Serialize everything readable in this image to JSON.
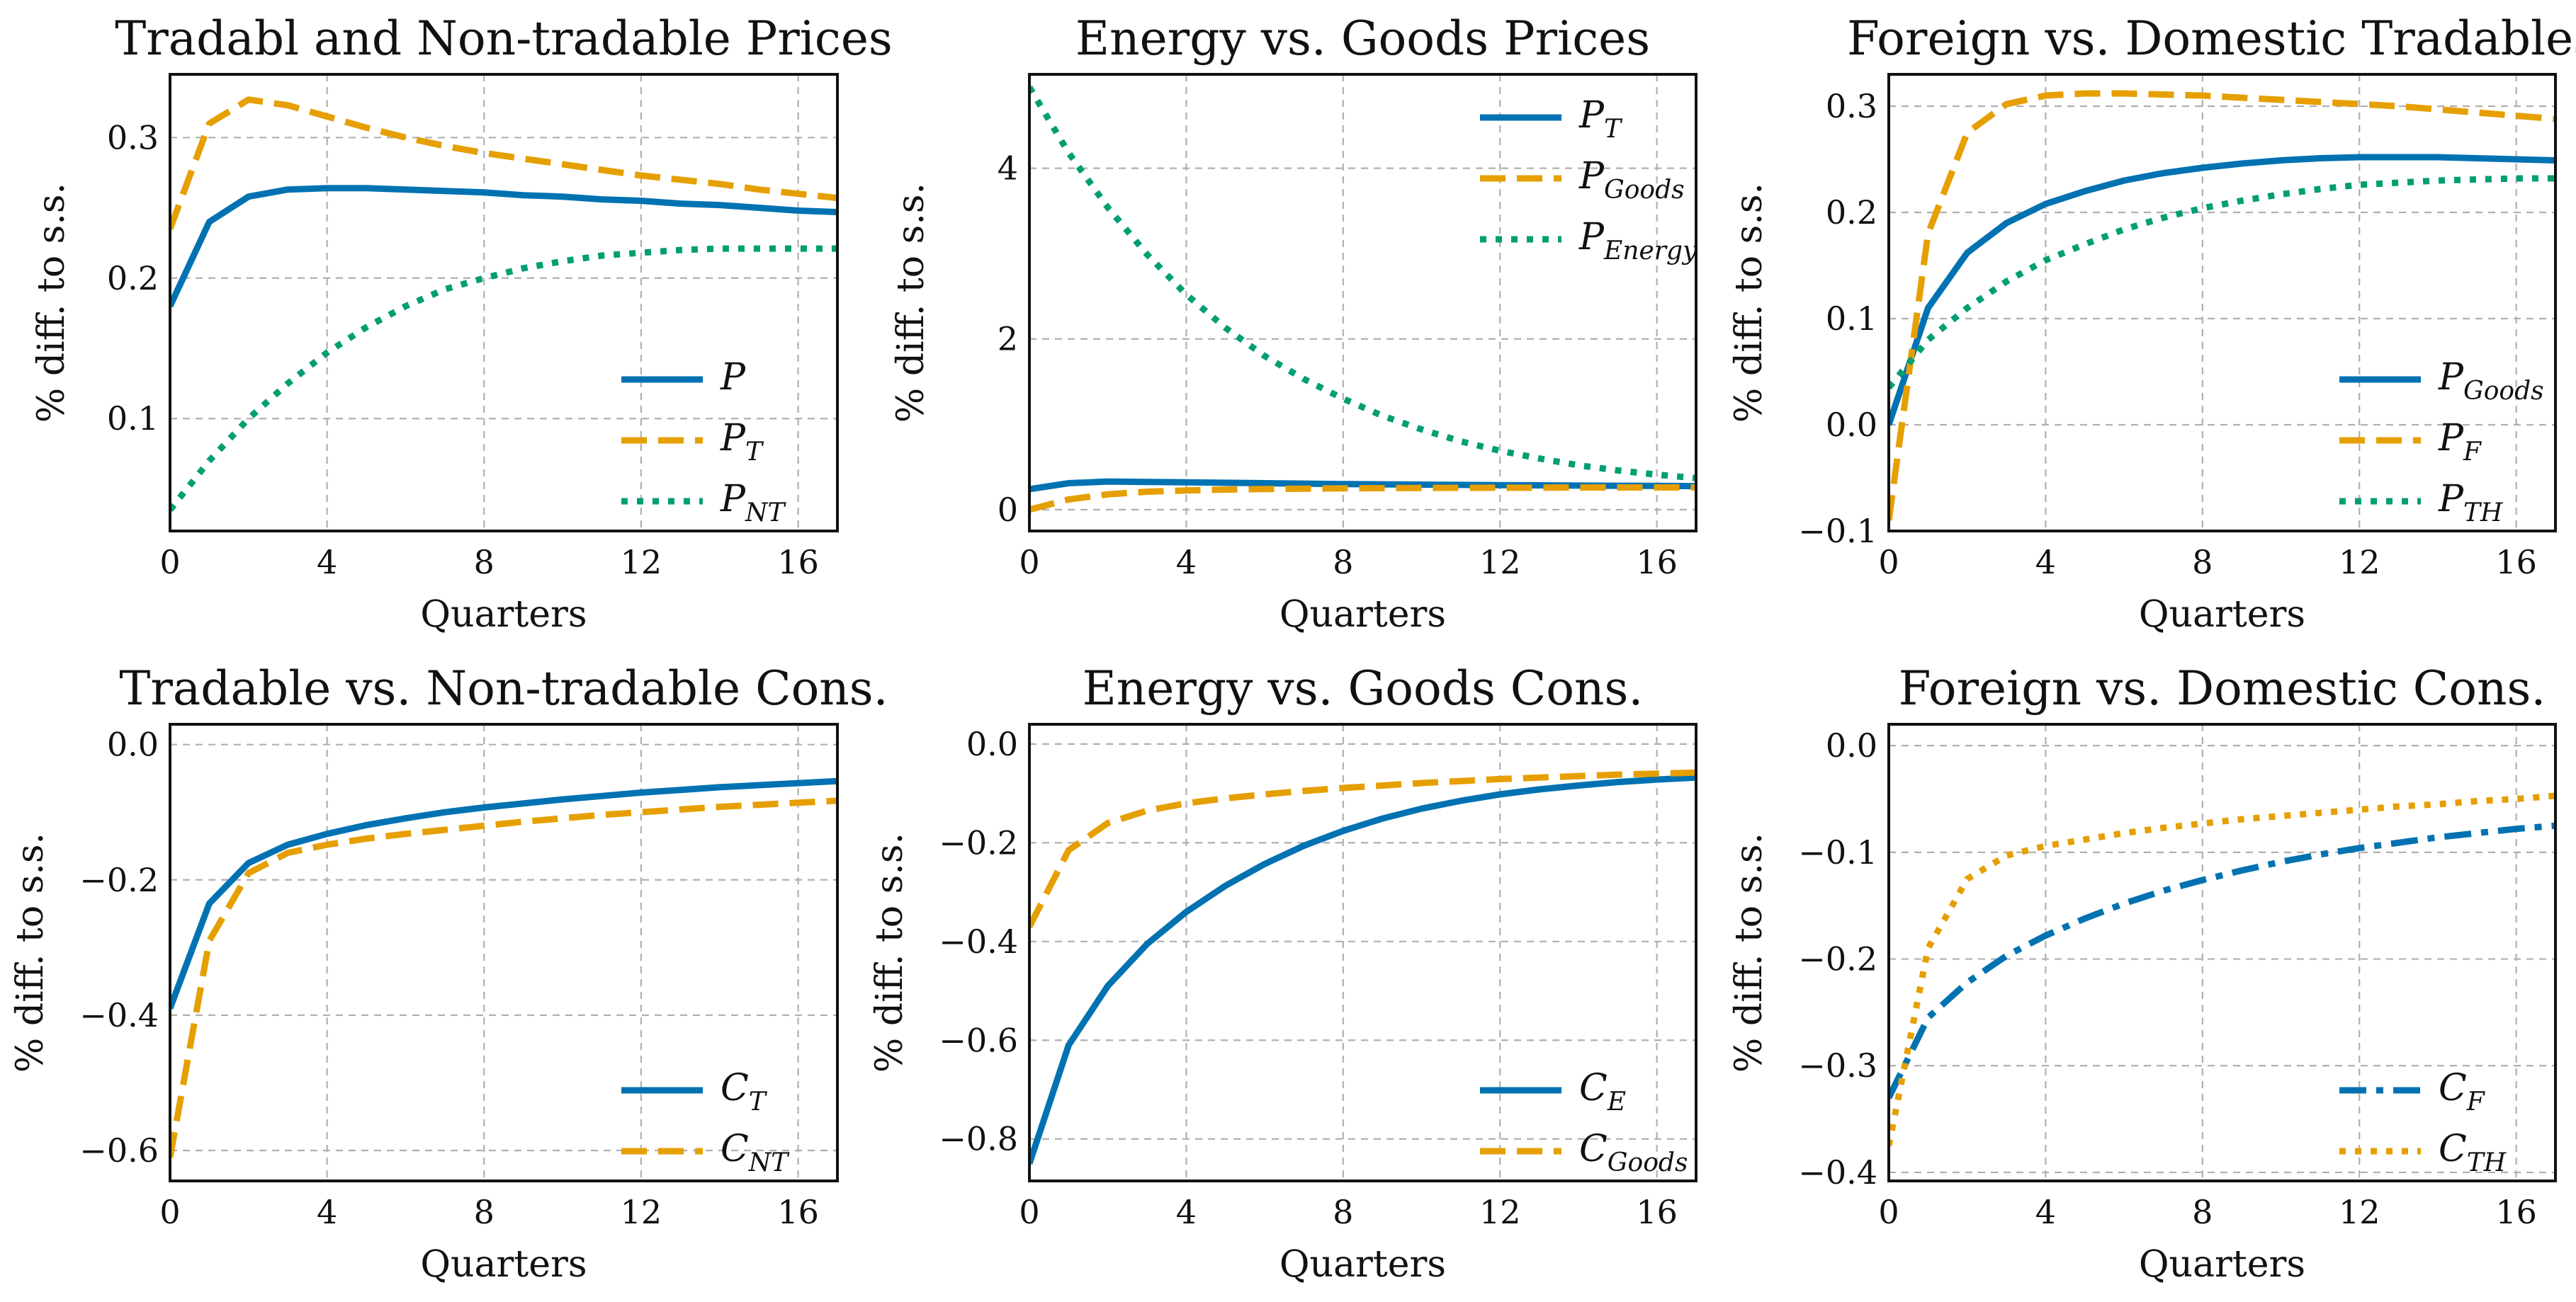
{
  "colors": {
    "blue": "#0072B2",
    "orange": "#E69F00",
    "green": "#009E73",
    "grid": "#b0b0b0",
    "frame": "#111111"
  },
  "chart_data": [
    {
      "type": "line",
      "title": "Tradabl and Non-tradable Prices",
      "xlabel": "Quarters",
      "ylabel": "% diff. to s.s.",
      "xlim": [
        0,
        17
      ],
      "ylim": [
        0.02,
        0.345
      ],
      "xticks": [
        0,
        4,
        8,
        12,
        16
      ],
      "yticks": [
        0.1,
        0.2,
        0.3
      ],
      "grid": true,
      "legend_position": "bottom-right",
      "x": [
        0,
        1,
        2,
        3,
        4,
        5,
        6,
        7,
        8,
        9,
        10,
        11,
        12,
        13,
        14,
        15,
        16,
        17
      ],
      "series": [
        {
          "name": "P",
          "sub": "",
          "style": "solid",
          "color": "blue",
          "values": [
            0.18,
            0.24,
            0.258,
            0.263,
            0.264,
            0.264,
            0.263,
            0.262,
            0.261,
            0.259,
            0.258,
            0.256,
            0.255,
            0.253,
            0.252,
            0.25,
            0.248,
            0.247
          ]
        },
        {
          "name": "P",
          "sub": "T",
          "style": "dashed",
          "color": "orange",
          "values": [
            0.235,
            0.31,
            0.327,
            0.323,
            0.315,
            0.307,
            0.3,
            0.294,
            0.289,
            0.285,
            0.281,
            0.277,
            0.273,
            0.27,
            0.267,
            0.263,
            0.26,
            0.257
          ]
        },
        {
          "name": "P",
          "sub": "NT",
          "style": "dotted",
          "color": "green",
          "values": [
            0.035,
            0.07,
            0.1,
            0.125,
            0.147,
            0.165,
            0.18,
            0.192,
            0.2,
            0.207,
            0.212,
            0.216,
            0.218,
            0.22,
            0.221,
            0.221,
            0.221,
            0.221
          ]
        }
      ]
    },
    {
      "type": "line",
      "title": "Energy vs. Goods Prices",
      "xlabel": "Quarters",
      "ylabel": "% diff. to s.s.",
      "xlim": [
        0,
        17
      ],
      "ylim": [
        -0.25,
        5.1
      ],
      "xticks": [
        0,
        4,
        8,
        12,
        16
      ],
      "yticks": [
        0,
        2,
        4
      ],
      "grid": true,
      "legend_position": "top-right",
      "x": [
        0,
        1,
        2,
        3,
        4,
        5,
        6,
        7,
        8,
        9,
        10,
        11,
        12,
        13,
        14,
        15,
        16,
        17
      ],
      "series": [
        {
          "name": "P",
          "sub": "T",
          "style": "solid",
          "color": "blue",
          "values": [
            0.24,
            0.31,
            0.33,
            0.325,
            0.32,
            0.315,
            0.31,
            0.305,
            0.3,
            0.297,
            0.293,
            0.29,
            0.287,
            0.285,
            0.282,
            0.28,
            0.278,
            0.276
          ]
        },
        {
          "name": "P",
          "sub": "Goods",
          "style": "dashed",
          "color": "orange",
          "values": [
            0.0,
            0.12,
            0.18,
            0.21,
            0.225,
            0.235,
            0.242,
            0.246,
            0.25,
            0.252,
            0.254,
            0.256,
            0.257,
            0.258,
            0.259,
            0.26,
            0.26,
            0.26
          ]
        },
        {
          "name": "P",
          "sub": "Energy",
          "style": "dotted",
          "color": "green",
          "values": [
            4.95,
            4.18,
            3.54,
            2.99,
            2.52,
            2.13,
            1.8,
            1.53,
            1.3,
            1.1,
            0.94,
            0.8,
            0.69,
            0.6,
            0.52,
            0.46,
            0.41,
            0.37
          ]
        }
      ]
    },
    {
      "type": "line",
      "title": "Foreign vs. Domestic Tradables",
      "xlabel": "Quarters",
      "ylabel": "% diff. to s.s.",
      "xlim": [
        0,
        17
      ],
      "ylim": [
        -0.1,
        0.33
      ],
      "xticks": [
        0,
        4,
        8,
        12,
        16
      ],
      "yticks": [
        -0.1,
        0.0,
        0.1,
        0.2,
        0.3
      ],
      "grid": true,
      "legend_position": "bottom-right",
      "x": [
        0,
        1,
        2,
        3,
        4,
        5,
        6,
        7,
        8,
        9,
        10,
        11,
        12,
        13,
        14,
        15,
        16,
        17
      ],
      "series": [
        {
          "name": "P",
          "sub": "Goods",
          "style": "solid",
          "color": "blue",
          "values": [
            0.0,
            0.11,
            0.162,
            0.19,
            0.208,
            0.22,
            0.23,
            0.237,
            0.242,
            0.246,
            0.249,
            0.251,
            0.252,
            0.252,
            0.252,
            0.251,
            0.25,
            0.249
          ]
        },
        {
          "name": "P",
          "sub": "F",
          "style": "dashed",
          "color": "orange",
          "values": [
            -0.09,
            0.18,
            0.275,
            0.302,
            0.31,
            0.312,
            0.312,
            0.311,
            0.31,
            0.308,
            0.306,
            0.304,
            0.302,
            0.3,
            0.297,
            0.294,
            0.291,
            0.288
          ]
        },
        {
          "name": "P",
          "sub": "TH",
          "style": "dotted",
          "color": "green",
          "values": [
            0.035,
            0.08,
            0.11,
            0.135,
            0.155,
            0.17,
            0.184,
            0.195,
            0.204,
            0.211,
            0.217,
            0.222,
            0.226,
            0.228,
            0.23,
            0.231,
            0.232,
            0.232
          ]
        }
      ]
    },
    {
      "type": "line",
      "title": "Tradable vs. Non-tradable Cons.",
      "xlabel": "Quarters",
      "ylabel": "% diff. to s.s.",
      "xlim": [
        0,
        17
      ],
      "ylim": [
        -0.645,
        0.03
      ],
      "xticks": [
        0,
        4,
        8,
        12,
        16
      ],
      "yticks": [
        -0.6,
        -0.4,
        -0.2,
        0.0
      ],
      "grid": true,
      "legend_position": "bottom-right",
      "x": [
        0,
        1,
        2,
        3,
        4,
        5,
        6,
        7,
        8,
        9,
        10,
        11,
        12,
        13,
        14,
        15,
        16,
        17
      ],
      "series": [
        {
          "name": "C",
          "sub": "T",
          "style": "solid",
          "color": "blue",
          "values": [
            -0.39,
            -0.235,
            -0.175,
            -0.148,
            -0.132,
            -0.119,
            -0.109,
            -0.1,
            -0.093,
            -0.087,
            -0.081,
            -0.076,
            -0.071,
            -0.067,
            -0.063,
            -0.06,
            -0.057,
            -0.054
          ]
        },
        {
          "name": "C",
          "sub": "NT",
          "style": "dashed",
          "color": "orange",
          "values": [
            -0.61,
            -0.29,
            -0.19,
            -0.16,
            -0.148,
            -0.139,
            -0.132,
            -0.126,
            -0.12,
            -0.114,
            -0.109,
            -0.104,
            -0.1,
            -0.096,
            -0.092,
            -0.089,
            -0.086,
            -0.083
          ]
        }
      ]
    },
    {
      "type": "line",
      "title": "Energy vs. Goods Cons.",
      "xlabel": "Quarters",
      "ylabel": "% diff. to s.s.",
      "xlim": [
        0,
        17
      ],
      "ylim": [
        -0.885,
        0.04
      ],
      "xticks": [
        0,
        4,
        8,
        12,
        16
      ],
      "yticks": [
        -0.8,
        -0.6,
        -0.4,
        -0.2,
        0.0
      ],
      "grid": true,
      "legend_position": "bottom-right",
      "x": [
        0,
        1,
        2,
        3,
        4,
        5,
        6,
        7,
        8,
        9,
        10,
        11,
        12,
        13,
        14,
        15,
        16,
        17
      ],
      "series": [
        {
          "name": "C",
          "sub": "E",
          "style": "solid",
          "color": "blue",
          "values": [
            -0.85,
            -0.61,
            -0.49,
            -0.405,
            -0.34,
            -0.287,
            -0.243,
            -0.206,
            -0.176,
            -0.151,
            -0.131,
            -0.115,
            -0.102,
            -0.092,
            -0.084,
            -0.077,
            -0.072,
            -0.068
          ]
        },
        {
          "name": "C",
          "sub": "Goods",
          "style": "dashed",
          "color": "orange",
          "values": [
            -0.37,
            -0.215,
            -0.16,
            -0.135,
            -0.12,
            -0.11,
            -0.102,
            -0.095,
            -0.089,
            -0.084,
            -0.079,
            -0.075,
            -0.071,
            -0.068,
            -0.065,
            -0.062,
            -0.06,
            -0.058
          ]
        }
      ]
    },
    {
      "type": "line",
      "title": "Foreign vs. Domestic Cons.",
      "xlabel": "Quarters",
      "ylabel": "% diff. to s.s.",
      "xlim": [
        0,
        17
      ],
      "ylim": [
        -0.408,
        0.02
      ],
      "xticks": [
        0,
        4,
        8,
        12,
        16
      ],
      "yticks": [
        -0.4,
        -0.3,
        -0.2,
        -0.1,
        0.0
      ],
      "grid": true,
      "legend_position": "bottom-right",
      "x": [
        0,
        1,
        2,
        3,
        4,
        5,
        6,
        7,
        8,
        9,
        10,
        11,
        12,
        13,
        14,
        15,
        16,
        17
      ],
      "series": [
        {
          "name": "C",
          "sub": "F",
          "style": "dashdot",
          "color": "blue",
          "values": [
            -0.33,
            -0.255,
            -0.222,
            -0.197,
            -0.178,
            -0.162,
            -0.148,
            -0.136,
            -0.126,
            -0.117,
            -0.109,
            -0.102,
            -0.096,
            -0.091,
            -0.086,
            -0.082,
            -0.078,
            -0.075
          ]
        },
        {
          "name": "C",
          "sub": "TH",
          "style": "dotted",
          "color": "orange",
          "values": [
            -0.375,
            -0.19,
            -0.125,
            -0.103,
            -0.094,
            -0.088,
            -0.082,
            -0.077,
            -0.073,
            -0.069,
            -0.066,
            -0.063,
            -0.06,
            -0.057,
            -0.055,
            -0.052,
            -0.05,
            -0.047
          ]
        }
      ]
    }
  ]
}
